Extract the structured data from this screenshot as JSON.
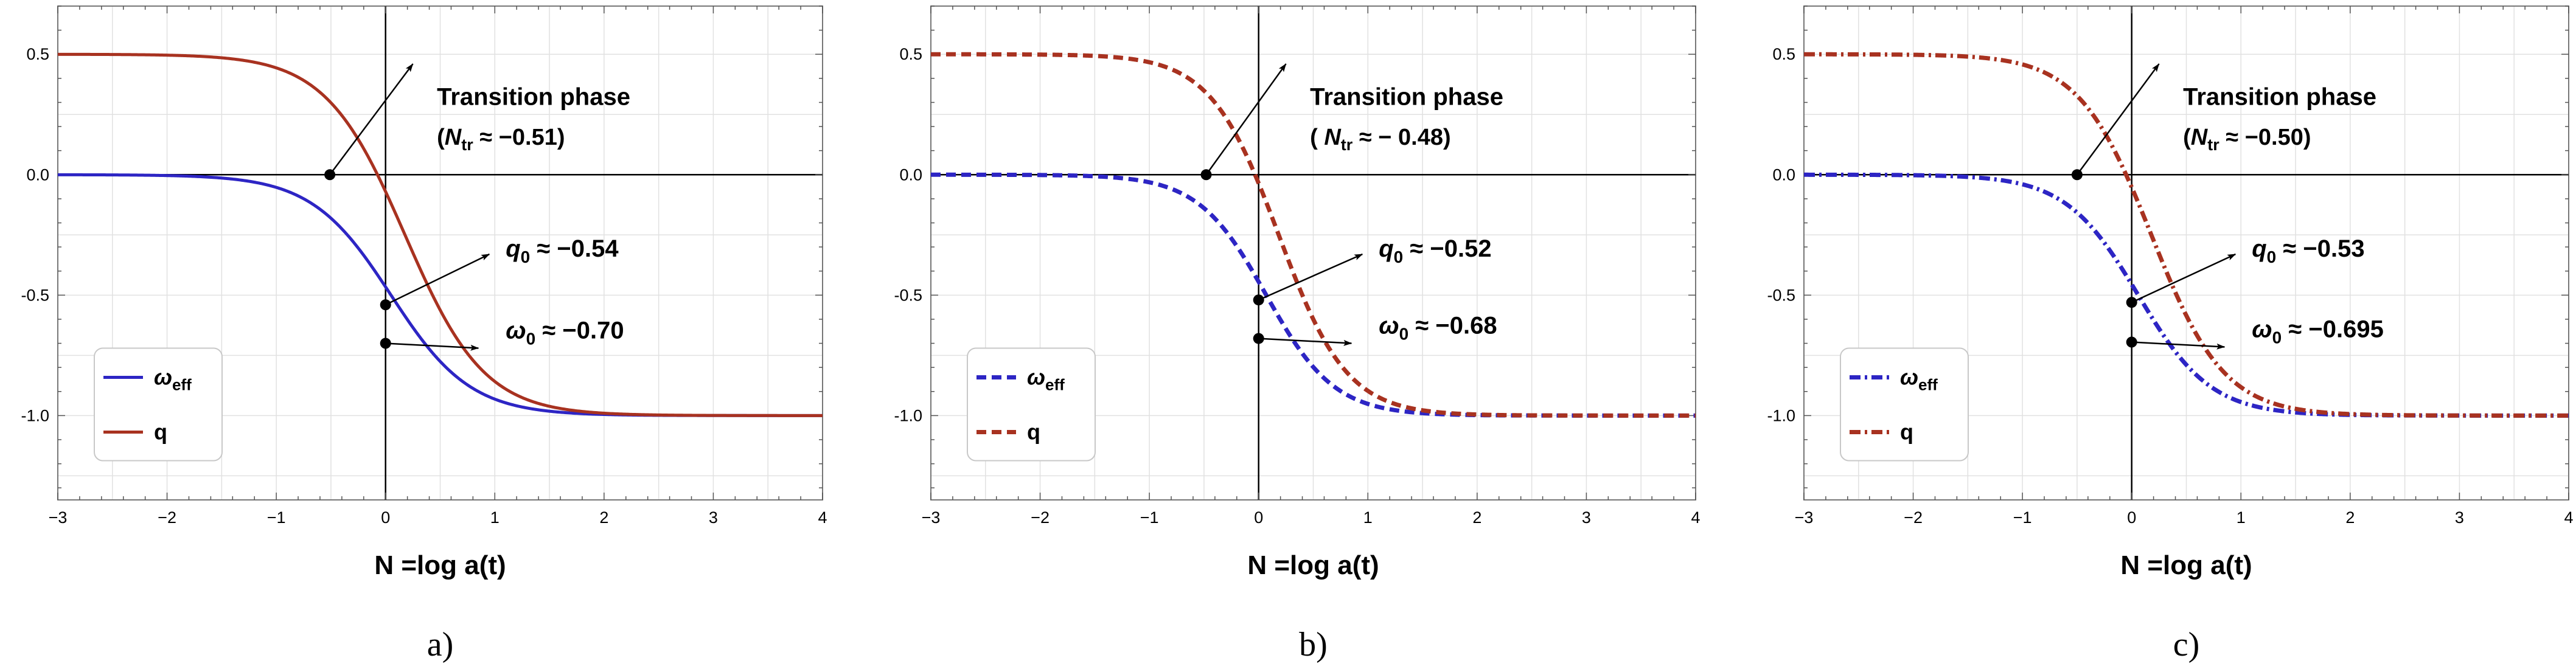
{
  "colors": {
    "weff": "#2d25c4",
    "q": "#a83220",
    "grid": "#e1e1e1",
    "axis": "#000000"
  },
  "chart_data": [
    {
      "type": "line",
      "panel_label": "a)",
      "line_style": "solid",
      "xlabel": "N =log a(t)",
      "xlim": [
        -3,
        4
      ],
      "ylim": [
        -1.35,
        0.7
      ],
      "xticks": [
        -3,
        -2,
        -1,
        0,
        1,
        2,
        3,
        4
      ],
      "xtick_labels": [
        "−3",
        "−2",
        "−1",
        "0",
        "1",
        "2",
        "3",
        "4"
      ],
      "yticks": [
        0.5,
        0.0,
        -0.5,
        -1.0
      ],
      "ytick_labels": [
        "0.5",
        "0.0",
        "-0.5",
        "-1.0"
      ],
      "series": [
        {
          "name": "ω",
          "sub": "eff",
          "key": "weff",
          "start": 0.0,
          "end": -1.0,
          "x0": 0.05,
          "k": 2.75
        },
        {
          "name": "q",
          "sub": "",
          "key": "q",
          "start": 0.5,
          "end": -1.0,
          "x0": 0.178,
          "k": 2.75
        }
      ],
      "annotations": {
        "transition": {
          "title": "Transition phase",
          "sym": "N",
          "sub": "tr",
          "rest": " ≈ −0.51)",
          "open": "(",
          "x": -0.51
        },
        "q0": {
          "sym": "q",
          "sub": "0",
          "rest": " ≈ −0.54",
          "y": -0.54
        },
        "w0": {
          "sym": "ω",
          "sub": "0",
          "rest": " ≈ −0.70",
          "y": -0.7
        }
      }
    },
    {
      "type": "line",
      "panel_label": "b)",
      "line_style": "dashed",
      "xlabel": "N =log a(t)",
      "xlim": [
        -3,
        4
      ],
      "ylim": [
        -1.35,
        0.7
      ],
      "xticks": [
        -3,
        -2,
        -1,
        0,
        1,
        2,
        3,
        4
      ],
      "xtick_labels": [
        "−3",
        "−2",
        "−1",
        "0",
        "1",
        "2",
        "3",
        "4"
      ],
      "yticks": [
        0.5,
        0.0,
        -0.5,
        -1.0
      ],
      "ytick_labels": [
        "0.5",
        "0.0",
        "-0.5",
        "-1.0"
      ],
      "series": [
        {
          "name": "ω",
          "sub": "eff",
          "key": "weff",
          "start": 0.0,
          "end": -1.0,
          "x0": 0.07,
          "k": 3.2
        },
        {
          "name": "q",
          "sub": "",
          "key": "q",
          "start": 0.5,
          "end": -1.0,
          "x0": 0.184,
          "k": 3.2
        }
      ],
      "annotations": {
        "transition": {
          "title": "Transition phase",
          "sym": "N",
          "sub": "tr",
          "rest": " ≈ − 0.48)",
          "open": "( ",
          "x": -0.48
        },
        "q0": {
          "sym": "q",
          "sub": "0",
          "rest": " ≈ −0.52",
          "y": -0.52
        },
        "w0": {
          "sym": "ω",
          "sub": "0",
          "rest": " ≈ −0.68",
          "y": -0.68
        }
      }
    },
    {
      "type": "line",
      "panel_label": "c)",
      "line_style": "dashdot",
      "xlabel": "N =log a(t)",
      "xlim": [
        -3,
        4
      ],
      "ylim": [
        -1.35,
        0.7
      ],
      "xticks": [
        -3,
        -2,
        -1,
        0,
        1,
        2,
        3,
        4
      ],
      "xtick_labels": [
        "−3",
        "−2",
        "−1",
        "0",
        "1",
        "2",
        "3",
        "4"
      ],
      "yticks": [
        0.5,
        0.0,
        -0.5,
        -1.0
      ],
      "ytick_labels": [
        "0.5",
        "0.0",
        "-0.5",
        "-1.0"
      ],
      "series": [
        {
          "name": "ω",
          "sub": "eff",
          "key": "weff",
          "start": 0.0,
          "end": -1.0,
          "x0": 0.06,
          "k": 3.0
        },
        {
          "name": "q",
          "sub": "",
          "key": "q",
          "start": 0.5,
          "end": -1.0,
          "x0": 0.18,
          "k": 3.0
        }
      ],
      "annotations": {
        "transition": {
          "title": "Transition phase",
          "sym": "N",
          "sub": "tr",
          "rest": " ≈ −0.50)",
          "open": "(",
          "x": -0.5
        },
        "q0": {
          "sym": "q",
          "sub": "0",
          "rest": " ≈ −0.53",
          "y": -0.53
        },
        "w0": {
          "sym": "ω",
          "sub": "0",
          "rest": " ≈ −0.695",
          "y": -0.695
        }
      }
    }
  ]
}
